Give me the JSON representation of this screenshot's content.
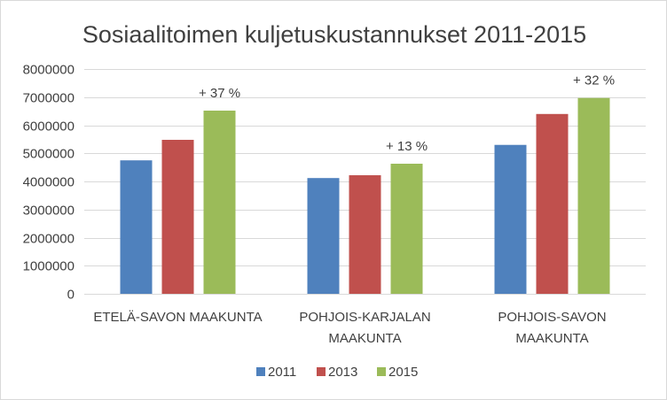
{
  "chart_data": {
    "type": "bar",
    "title": "Sosiaalitoimen kuljetuskustannukset 2011-2015",
    "categories": [
      [
        "ETELÄ-SAVON MAAKUNTA"
      ],
      [
        "POHJOIS-KARJALAN",
        "MAAKUNTA"
      ],
      [
        "POHJOIS-SAVON",
        "MAAKUNTA"
      ]
    ],
    "series": [
      {
        "name": "2011",
        "color": "#4f81bd",
        "values": [
          4750000,
          4120000,
          5300000
        ]
      },
      {
        "name": "2013",
        "color": "#c0504d",
        "values": [
          5480000,
          4220000,
          6400000
        ]
      },
      {
        "name": "2015",
        "color": "#9bbb59",
        "values": [
          6520000,
          4630000,
          6970000
        ]
      }
    ],
    "annotations": [
      "+ 37 %",
      "+ 13 %",
      "+ 32 %"
    ],
    "ylim": [
      0,
      8000000
    ],
    "yticks": [
      "0",
      "1000000",
      "2000000",
      "3000000",
      "4000000",
      "5000000",
      "6000000",
      "7000000",
      "8000000"
    ],
    "grid": true,
    "legend": "bottom"
  }
}
